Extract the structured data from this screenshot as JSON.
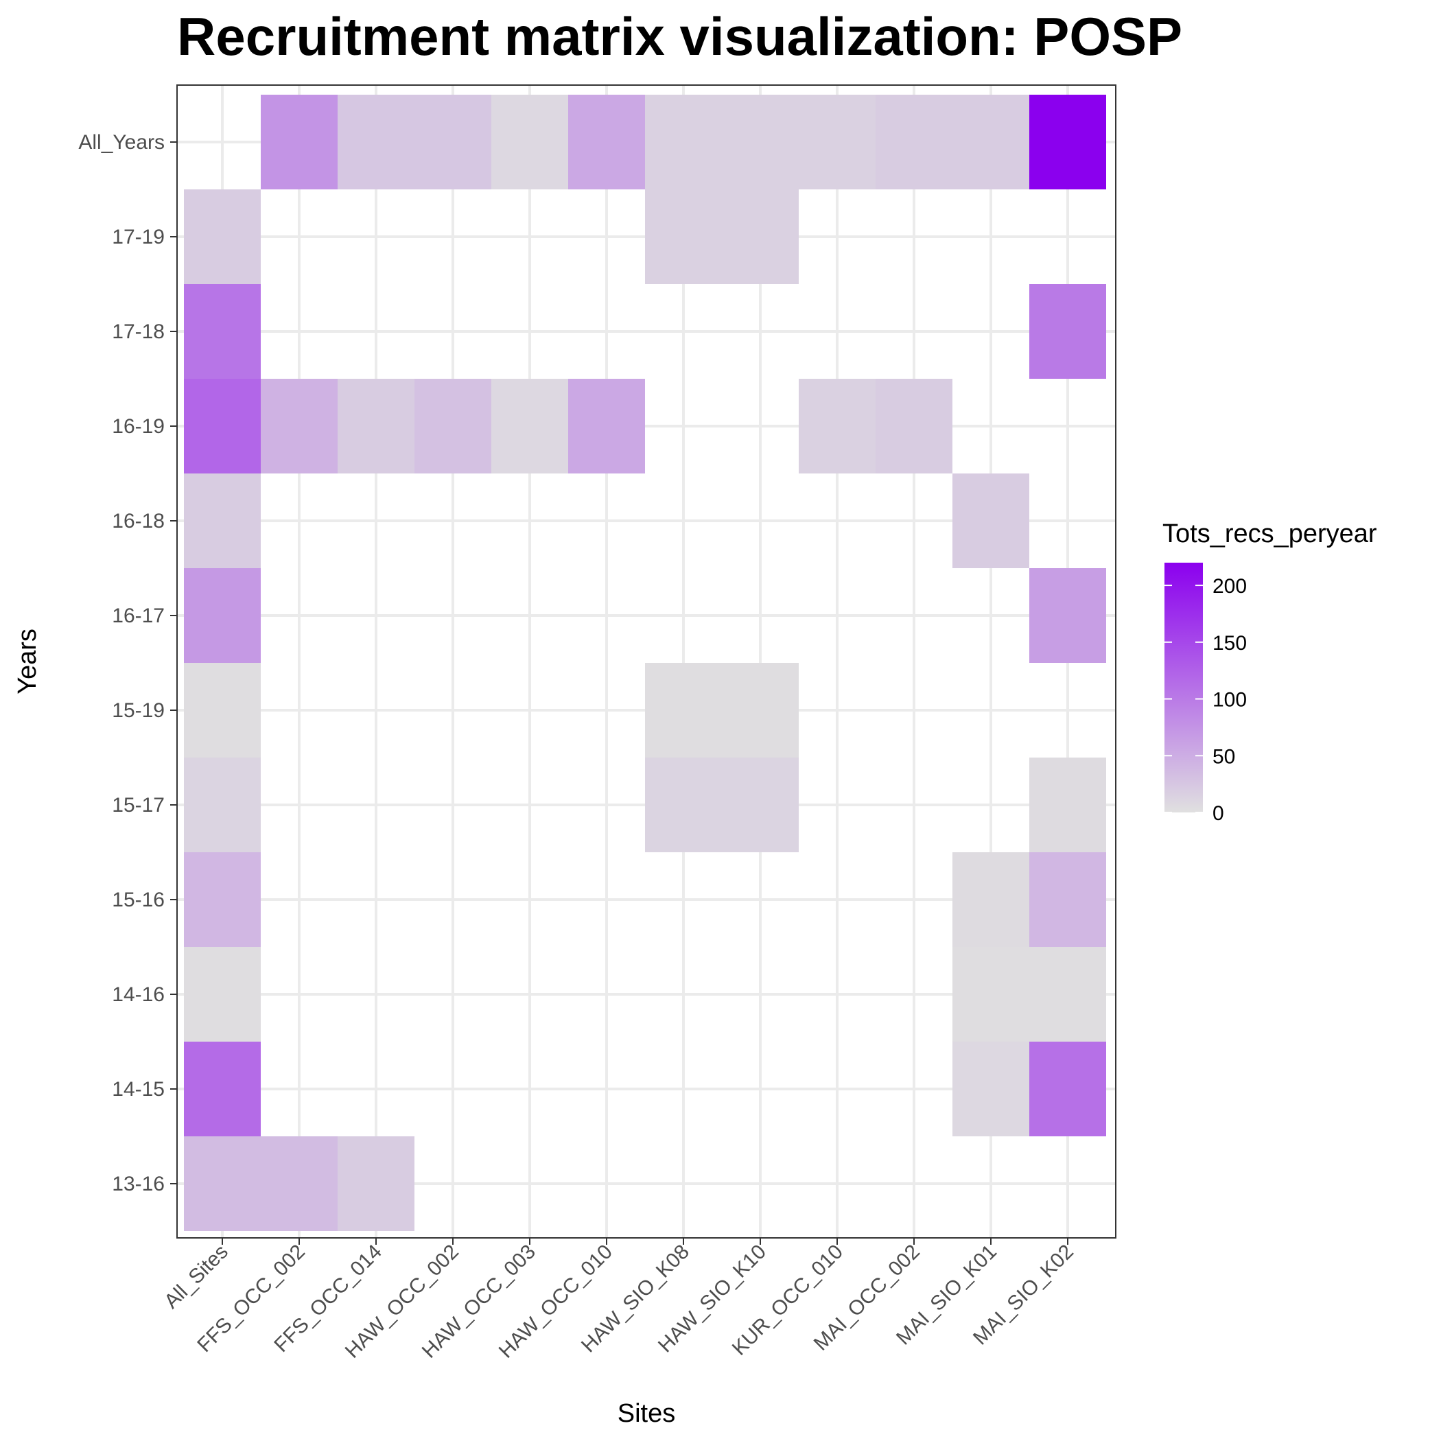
{
  "chart_data": {
    "type": "heatmap",
    "title": "Recruitment matrix visualization: POSP",
    "xlabel": "Sites",
    "ylabel": "Years",
    "x_categories": [
      "All_Sites",
      "FFS_OCC_002",
      "FFS_OCC_014",
      "HAW_OCC_002",
      "HAW_OCC_003",
      "HAW_OCC_010",
      "HAW_SIO_K08",
      "HAW_SIO_K10",
      "KUR_OCC_010",
      "MAI_OCC_002",
      "MAI_SIO_K01",
      "MAI_SIO_K02"
    ],
    "y_categories": [
      "All_Years",
      "17-19",
      "17-18",
      "16-19",
      "16-18",
      "16-17",
      "15-19",
      "15-17",
      "15-16",
      "14-16",
      "14-15",
      "13-16"
    ],
    "legend": {
      "title": "Tots_recs_peryear",
      "min": 0,
      "max": 220,
      "breaks": [
        0,
        50,
        100,
        150,
        200
      ],
      "low_color": "#e0e0e0",
      "high_color": "#8b00ee",
      "placement": "right"
    },
    "grid": true,
    "cells": [
      {
        "x": "FFS_OCC_002",
        "y": "All_Years",
        "value": 75
      },
      {
        "x": "FFS_OCC_014",
        "y": "All_Years",
        "value": 25
      },
      {
        "x": "HAW_OCC_002",
        "y": "All_Years",
        "value": 25
      },
      {
        "x": "HAW_OCC_003",
        "y": "All_Years",
        "value": 8
      },
      {
        "x": "HAW_OCC_010",
        "y": "All_Years",
        "value": 55
      },
      {
        "x": "HAW_SIO_K08",
        "y": "All_Years",
        "value": 15
      },
      {
        "x": "HAW_SIO_K10",
        "y": "All_Years",
        "value": 15
      },
      {
        "x": "KUR_OCC_010",
        "y": "All_Years",
        "value": 15
      },
      {
        "x": "MAI_OCC_002",
        "y": "All_Years",
        "value": 20
      },
      {
        "x": "MAI_SIO_K01",
        "y": "All_Years",
        "value": 20
      },
      {
        "x": "MAI_SIO_K02",
        "y": "All_Years",
        "value": 220
      },
      {
        "x": "All_Sites",
        "y": "17-19",
        "value": 20
      },
      {
        "x": "HAW_SIO_K08",
        "y": "17-19",
        "value": 15
      },
      {
        "x": "HAW_SIO_K10",
        "y": "17-19",
        "value": 15
      },
      {
        "x": "All_Sites",
        "y": "17-18",
        "value": 105
      },
      {
        "x": "MAI_SIO_K02",
        "y": "17-18",
        "value": 100
      },
      {
        "x": "All_Sites",
        "y": "16-19",
        "value": 120
      },
      {
        "x": "FFS_OCC_002",
        "y": "16-19",
        "value": 45
      },
      {
        "x": "FFS_OCC_014",
        "y": "16-19",
        "value": 20
      },
      {
        "x": "HAW_OCC_002",
        "y": "16-19",
        "value": 30
      },
      {
        "x": "HAW_OCC_003",
        "y": "16-19",
        "value": 8
      },
      {
        "x": "HAW_OCC_010",
        "y": "16-19",
        "value": 55
      },
      {
        "x": "KUR_OCC_010",
        "y": "16-19",
        "value": 15
      },
      {
        "x": "MAI_OCC_002",
        "y": "16-19",
        "value": 20
      },
      {
        "x": "All_Sites",
        "y": "16-18",
        "value": 20
      },
      {
        "x": "MAI_SIO_K01",
        "y": "16-18",
        "value": 20
      },
      {
        "x": "All_Sites",
        "y": "16-17",
        "value": 70
      },
      {
        "x": "MAI_SIO_K02",
        "y": "16-17",
        "value": 65
      },
      {
        "x": "All_Sites",
        "y": "15-19",
        "value": 3
      },
      {
        "x": "HAW_SIO_K08",
        "y": "15-19",
        "value": 3
      },
      {
        "x": "HAW_SIO_K10",
        "y": "15-19",
        "value": 3
      },
      {
        "x": "All_Sites",
        "y": "15-17",
        "value": 12
      },
      {
        "x": "HAW_SIO_K08",
        "y": "15-17",
        "value": 12
      },
      {
        "x": "HAW_SIO_K10",
        "y": "15-17",
        "value": 12
      },
      {
        "x": "MAI_SIO_K02",
        "y": "15-17",
        "value": 5
      },
      {
        "x": "All_Sites",
        "y": "15-16",
        "value": 40
      },
      {
        "x": "MAI_SIO_K01",
        "y": "15-16",
        "value": 5
      },
      {
        "x": "MAI_SIO_K02",
        "y": "15-16",
        "value": 40
      },
      {
        "x": "All_Sites",
        "y": "14-16",
        "value": 3
      },
      {
        "x": "MAI_SIO_K01",
        "y": "14-16",
        "value": 3
      },
      {
        "x": "MAI_SIO_K02",
        "y": "14-16",
        "value": 3
      },
      {
        "x": "All_Sites",
        "y": "14-15",
        "value": 115
      },
      {
        "x": "MAI_SIO_K01",
        "y": "14-15",
        "value": 8
      },
      {
        "x": "MAI_SIO_K02",
        "y": "14-15",
        "value": 110
      },
      {
        "x": "All_Sites",
        "y": "13-16",
        "value": 35
      },
      {
        "x": "FFS_OCC_002",
        "y": "13-16",
        "value": 35
      },
      {
        "x": "FFS_OCC_014",
        "y": "13-16",
        "value": 20
      }
    ]
  }
}
